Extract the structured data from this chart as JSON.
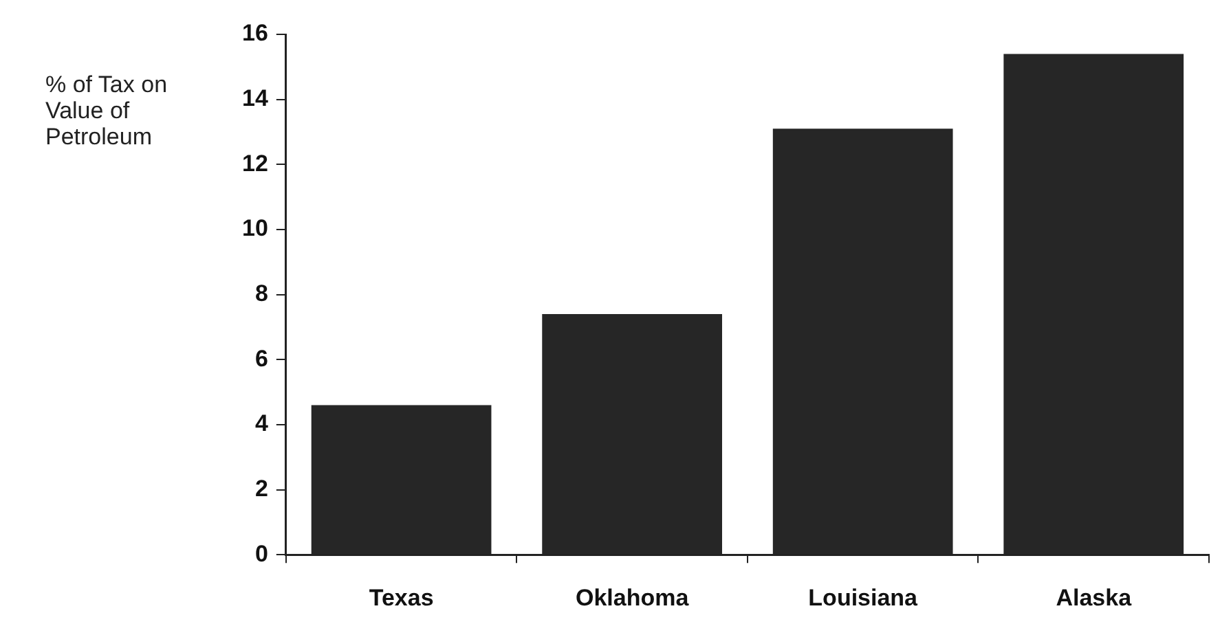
{
  "chart_data": {
    "type": "bar",
    "ylabel": "% of Tax on Value of Petroleum",
    "categories": [
      "Texas",
      "Oklahoma",
      "Louisiana",
      "Alaska"
    ],
    "values": [
      4.6,
      7.4,
      13.1,
      15.4
    ],
    "color": "#262626",
    "ylim": [
      0,
      16
    ],
    "yticks": [
      0,
      2,
      4,
      6,
      8,
      10,
      12,
      14,
      16
    ],
    "grid": false
  }
}
